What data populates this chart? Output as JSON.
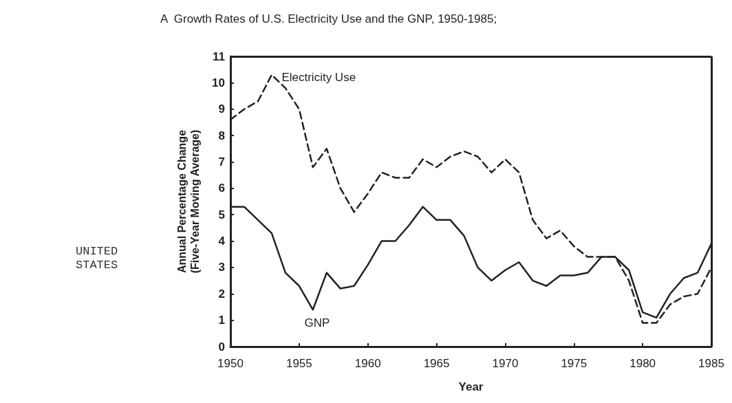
{
  "chart_data": {
    "type": "line",
    "title": "A  Growth Rates of U.S. Electricity Use and the GNP, 1950-1985;",
    "xlabel": "Year",
    "ylabel": "Annual Percentage Change\n(Five-Year Moving Average)",
    "x": [
      1950,
      1951,
      1952,
      1953,
      1954,
      1955,
      1956,
      1957,
      1958,
      1959,
      1960,
      1961,
      1962,
      1963,
      1964,
      1965,
      1966,
      1967,
      1968,
      1969,
      1970,
      1971,
      1972,
      1973,
      1974,
      1975,
      1976,
      1977,
      1978,
      1979,
      1980,
      1981,
      1982,
      1983,
      1984,
      1985
    ],
    "series": [
      {
        "name": "Electricity Use",
        "color": "#222222",
        "line_style": "dashed",
        "values": [
          8.6,
          9.0,
          9.3,
          10.3,
          9.8,
          9.0,
          6.8,
          7.5,
          6.0,
          5.1,
          5.8,
          6.6,
          6.4,
          6.4,
          7.1,
          6.8,
          7.2,
          7.4,
          7.2,
          6.6,
          7.1,
          6.6,
          4.8,
          4.1,
          4.4,
          3.8,
          3.4,
          3.4,
          3.4,
          2.5,
          0.9,
          0.9,
          1.6,
          1.9,
          2.0,
          3.0
        ]
      },
      {
        "name": "GNP",
        "color": "#222222",
        "line_style": "solid",
        "values": [
          5.3,
          5.3,
          4.8,
          4.3,
          2.8,
          2.3,
          1.4,
          2.8,
          2.2,
          2.3,
          3.1,
          4.0,
          4.0,
          4.6,
          5.3,
          4.8,
          4.8,
          4.2,
          3.0,
          2.5,
          2.9,
          3.2,
          2.5,
          2.3,
          2.7,
          2.7,
          2.8,
          3.4,
          3.4,
          2.9,
          1.3,
          1.1,
          2.0,
          2.6,
          2.8,
          3.9
        ]
      }
    ],
    "xlim": [
      1950,
      1985
    ],
    "xticks": [
      1950,
      1955,
      1960,
      1965,
      1970,
      1975,
      1980,
      1985
    ],
    "ylim": [
      0,
      11
    ],
    "yticks": [
      0,
      1,
      2,
      3,
      4,
      5,
      6,
      7,
      8,
      9,
      10,
      11
    ],
    "grid": false,
    "marker": "none",
    "annotations": [
      "UNITED\nSTATES"
    ]
  }
}
